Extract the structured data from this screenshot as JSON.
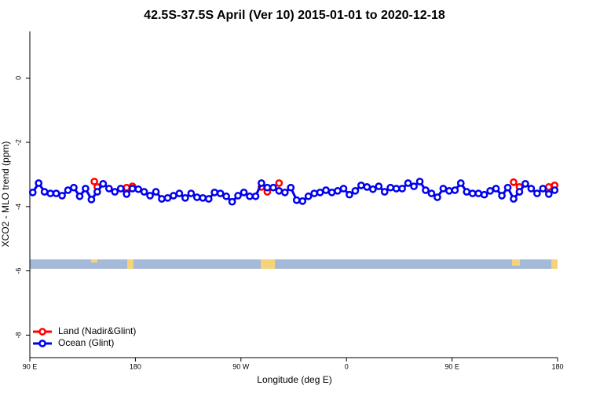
{
  "chart_data": {
    "type": "line",
    "title": "42.5S-37.5S April (Ver 10)   2015-01-01 to 2020-12-18",
    "xlabel": "Longitude (deg E)",
    "ylabel": "XCO2 - MLO trend (ppm)",
    "xlim": [
      90,
      540
    ],
    "ylim": [
      -8.7,
      1.45
    ],
    "xticks": [
      {
        "value": 90,
        "label": "90 E"
      },
      180,
      {
        "value": 270,
        "label": "90 W"
      },
      {
        "value": 360,
        "label": "0"
      },
      {
        "value": 450,
        "label": "90 E"
      },
      {
        "value": 540,
        "label": "180"
      }
    ],
    "yticks": [
      -8,
      -6,
      -4,
      -2,
      0
    ],
    "legend": "bottom-left",
    "series": [
      {
        "name": "Land (Nadir&Glint)",
        "color": "#ff0000",
        "x": [
          145,
          147.5,
          160,
          172.5,
          177.5,
          230,
          287.5,
          292.5,
          302.5,
          400,
          502.5,
          507.5,
          520,
          532.5,
          537.5
        ],
        "values": [
          -3.22,
          -3.39,
          null,
          -3.41,
          -3.37,
          null,
          -3.39,
          -3.54,
          -3.27,
          null,
          -3.24,
          -3.39,
          null,
          -3.39,
          -3.34
        ]
      },
      {
        "name": "Ocean (Glint)",
        "color": "#0000ee",
        "x": [
          92.5,
          97.5,
          102.5,
          107.5,
          112.5,
          117.5,
          122.5,
          127.5,
          132.5,
          137.5,
          142.5,
          147.5,
          152.5,
          157.5,
          162.5,
          167.5,
          172.5,
          177.5,
          182.5,
          187.5,
          192.5,
          197.5,
          202.5,
          207.5,
          212.5,
          217.5,
          222.5,
          227.5,
          232.5,
          237.5,
          242.5,
          247.5,
          252.5,
          257.5,
          262.5,
          267.5,
          272.5,
          277.5,
          282.5,
          287.5,
          292.5,
          297.5,
          302.5,
          307.5,
          312.5,
          317.5,
          322.5,
          327.5,
          332.5,
          337.5,
          342.5,
          347.5,
          352.5,
          357.5,
          362.5,
          367.5,
          372.5,
          377.5,
          382.5,
          387.5,
          392.5,
          397.5,
          402.5,
          407.5,
          412.5,
          417.5,
          422.5,
          427.5,
          432.5,
          437.5,
          442.5,
          447.5,
          452.5,
          457.5,
          462.5,
          467.5,
          472.5,
          477.5,
          482.5,
          487.5,
          492.5,
          497.5,
          502.5,
          507.5,
          512.5,
          517.5,
          522.5,
          527.5,
          532.5,
          537.5
        ],
        "values": [
          -3.56,
          -3.27,
          -3.54,
          -3.59,
          -3.59,
          -3.66,
          -3.49,
          -3.41,
          -3.68,
          -3.44,
          -3.78,
          -3.54,
          -3.29,
          -3.44,
          -3.54,
          -3.44,
          -3.61,
          -3.44,
          -3.46,
          -3.54,
          -3.66,
          -3.54,
          -3.76,
          -3.73,
          -3.66,
          -3.59,
          -3.73,
          -3.59,
          -3.71,
          -3.73,
          -3.76,
          -3.56,
          -3.59,
          -3.68,
          -3.85,
          -3.66,
          -3.56,
          -3.68,
          -3.68,
          -3.27,
          -3.41,
          -3.41,
          -3.51,
          -3.56,
          -3.41,
          -3.8,
          -3.83,
          -3.68,
          -3.59,
          -3.56,
          -3.49,
          -3.56,
          -3.51,
          -3.44,
          -3.63,
          -3.51,
          -3.34,
          -3.39,
          -3.46,
          -3.37,
          -3.54,
          -3.41,
          -3.44,
          -3.44,
          -3.27,
          -3.37,
          -3.22,
          -3.49,
          -3.59,
          -3.71,
          -3.44,
          -3.51,
          -3.49,
          -3.27,
          -3.54,
          -3.59,
          -3.59,
          -3.63,
          -3.51,
          -3.44,
          -3.66,
          -3.41,
          -3.76,
          -3.54,
          -3.29,
          -3.44,
          -3.59,
          -3.44,
          -3.61,
          -3.49
        ]
      }
    ]
  }
}
